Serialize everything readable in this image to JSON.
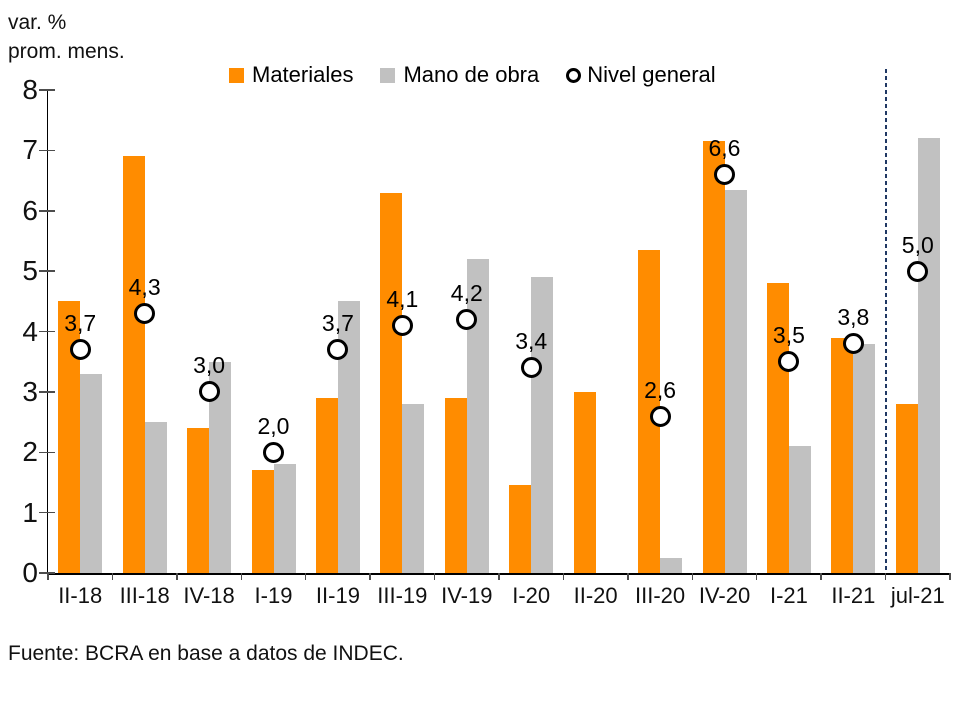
{
  "title": {
    "line1": "var. %",
    "line2": "prom. mens."
  },
  "legend": {
    "items": [
      {
        "label": "Materiales",
        "swatch": "square",
        "color": "#FF8C00"
      },
      {
        "label": "Mano de obra",
        "swatch": "square",
        "color": "#C1C1C1"
      },
      {
        "label": "Nivel general",
        "swatch": "open-circle",
        "color": "#000000"
      }
    ]
  },
  "footer": {
    "source": "Fuente: BCRA en base a datos de INDEC."
  },
  "chart_data": {
    "type": "bar",
    "title": "var. % prom. mens.",
    "ylabel": "var. % prom. mens.",
    "xlabel": "",
    "categories": [
      "II-18",
      "III-18",
      "IV-18",
      "I-19",
      "II-19",
      "III-19",
      "IV-19",
      "I-20",
      "II-20",
      "III-20",
      "IV-20",
      "I-21",
      "II-21",
      "jul-21"
    ],
    "series": [
      {
        "name": "Materiales",
        "kind": "bar",
        "color": "#FF8C00",
        "values": [
          4.5,
          6.9,
          2.4,
          1.7,
          2.9,
          6.3,
          2.9,
          1.45,
          3.0,
          5.35,
          7.15,
          4.8,
          3.9,
          2.8
        ]
      },
      {
        "name": "Mano de obra",
        "kind": "bar",
        "color": "#C1C1C1",
        "values": [
          3.3,
          2.5,
          3.5,
          1.8,
          4.5,
          2.8,
          5.2,
          4.9,
          null,
          0.25,
          6.35,
          2.1,
          3.8,
          7.2
        ]
      },
      {
        "name": "Nivel general",
        "kind": "scatter",
        "marker": "open-circle",
        "color": "#000000",
        "values": [
          3.7,
          4.3,
          3.0,
          2.0,
          3.7,
          4.1,
          4.2,
          3.4,
          null,
          2.6,
          6.6,
          3.5,
          3.8,
          5.0
        ],
        "labels": [
          "3,7",
          "4,3",
          "3,0",
          "2,0",
          "3,7",
          "4,1",
          "4,2",
          "3,4",
          null,
          "2,6",
          "6,6",
          "3,5",
          "3,8",
          "5,0"
        ]
      }
    ],
    "ylim": [
      0,
      8
    ],
    "yticks": [
      0,
      1,
      2,
      3,
      4,
      5,
      6,
      7,
      8
    ],
    "grid": false,
    "legend_position": "top",
    "decimal_separator": ",",
    "separator_line": {
      "after_category": "II-21",
      "style": "dashed",
      "color": "#203864"
    },
    "source": "Fuente: BCRA en base a datos de INDEC."
  }
}
